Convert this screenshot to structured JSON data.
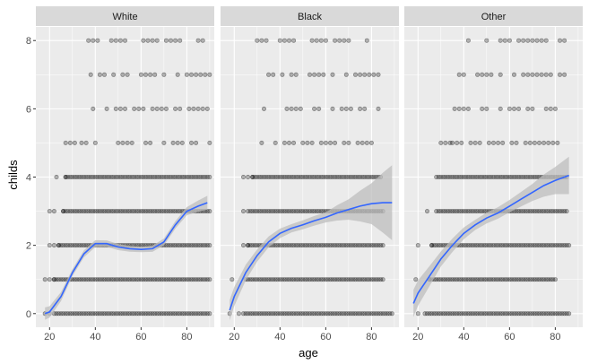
{
  "chart_data": {
    "type": "scatter",
    "title": "",
    "xlabel": "age",
    "ylabel": "childs",
    "xlim": [
      14,
      92
    ],
    "ylim": [
      -0.4,
      8.4
    ],
    "x_ticks": [
      "20",
      "40",
      "60",
      "80"
    ],
    "y_ticks": [
      "0",
      "2",
      "4",
      "6",
      "8"
    ],
    "x_tick_values": [
      20,
      40,
      60,
      80
    ],
    "y_tick_values": [
      0,
      2,
      4,
      6,
      8
    ],
    "smoother": "loess with 95% confidence band",
    "colors": {
      "panel": "#ebebeb",
      "strip": "#d9d9d9",
      "grid": "#ffffff",
      "point": "#000000",
      "line": "#3366ff",
      "band": "#bebebe"
    },
    "panels": [
      {
        "name": "White",
        "points": [
          [
            0,
            [
              [
                18,
                22
              ],
              [
                22,
                90
              ]
            ]
          ],
          [
            1,
            [
              [
                18,
                22
              ],
              [
                22,
                90
              ]
            ]
          ],
          [
            2,
            [
              [
                20,
                24
              ],
              [
                24,
                90
              ]
            ]
          ],
          [
            3,
            [
              [
                20,
                26
              ],
              [
                26,
                90
              ]
            ]
          ],
          [
            4,
            [
              [
                21,
                27
              ],
              [
                27,
                90
              ]
            ]
          ],
          [
            5,
            [
              [
                27,
                32
              ],
              [
                32,
                90
              ]
            ]
          ],
          [
            6,
            [
              [
                37,
                90
              ]
            ]
          ],
          [
            7,
            [
              [
                36,
                90
              ]
            ]
          ],
          [
            8,
            [
              [
                35,
                90
              ]
            ]
          ]
        ],
        "trend": [
          [
            18,
            0.0
          ],
          [
            20,
            0.05
          ],
          [
            25,
            0.5
          ],
          [
            30,
            1.2
          ],
          [
            35,
            1.75
          ],
          [
            40,
            2.05
          ],
          [
            45,
            2.05
          ],
          [
            50,
            1.95
          ],
          [
            55,
            1.9
          ],
          [
            60,
            1.88
          ],
          [
            65,
            1.9
          ],
          [
            70,
            2.1
          ],
          [
            75,
            2.6
          ],
          [
            80,
            3.0
          ],
          [
            85,
            3.15
          ],
          [
            89,
            3.25
          ]
        ],
        "band": [
          [
            18,
            0.18
          ],
          [
            30,
            0.1
          ],
          [
            40,
            0.1
          ],
          [
            60,
            0.08
          ],
          [
            70,
            0.1
          ],
          [
            80,
            0.12
          ],
          [
            89,
            0.2
          ]
        ]
      },
      {
        "name": "Black",
        "points": [
          [
            0,
            [
              [
                18,
                24
              ],
              [
                24,
                89
              ]
            ]
          ],
          [
            1,
            [
              [
                19,
                25
              ],
              [
                25,
                85
              ]
            ]
          ],
          [
            2,
            [
              [
                22,
                26
              ],
              [
                26,
                85
              ]
            ]
          ],
          [
            3,
            [
              [
                24,
                27
              ],
              [
                27,
                85
              ]
            ]
          ],
          [
            4,
            [
              [
                24,
                28
              ],
              [
                28,
                84
              ]
            ]
          ],
          [
            5,
            [
              [
                29,
                32
              ],
              [
                32,
                80
              ]
            ]
          ],
          [
            6,
            [
              [
                33,
                83
              ]
            ]
          ],
          [
            7,
            [
              [
                33,
                83
              ]
            ]
          ],
          [
            8,
            [
              [
                30,
                79
              ]
            ]
          ]
        ],
        "trend": [
          [
            18,
            0.1
          ],
          [
            20,
            0.5
          ],
          [
            25,
            1.2
          ],
          [
            30,
            1.7
          ],
          [
            35,
            2.1
          ],
          [
            40,
            2.35
          ],
          [
            45,
            2.5
          ],
          [
            50,
            2.6
          ],
          [
            55,
            2.72
          ],
          [
            60,
            2.82
          ],
          [
            65,
            2.95
          ],
          [
            70,
            3.05
          ],
          [
            75,
            3.15
          ],
          [
            80,
            3.22
          ],
          [
            85,
            3.25
          ],
          [
            89,
            3.25
          ]
        ],
        "band": [
          [
            18,
            0.3
          ],
          [
            30,
            0.18
          ],
          [
            45,
            0.12
          ],
          [
            60,
            0.15
          ],
          [
            70,
            0.3
          ],
          [
            80,
            0.6
          ],
          [
            89,
            1.1
          ]
        ]
      },
      {
        "name": "Other",
        "points": [
          [
            0,
            [
              [
                18,
                23
              ],
              [
                23,
                86
              ]
            ]
          ],
          [
            1,
            [
              [
                19,
                25
              ],
              [
                25,
                80
              ]
            ]
          ],
          [
            2,
            [
              [
                20,
                26
              ],
              [
                26,
                86
              ]
            ]
          ],
          [
            3,
            [
              [
                22,
                28
              ],
              [
                28,
                85
              ]
            ]
          ],
          [
            4,
            [
              [
                24,
                28
              ],
              [
                28,
                85
              ]
            ]
          ],
          [
            5,
            [
              [
                30,
                35
              ],
              [
                35,
                84
              ]
            ]
          ],
          [
            6,
            [
              [
                32,
                80
              ]
            ]
          ],
          [
            7,
            [
              [
                38,
                85
              ]
            ]
          ],
          [
            8,
            [
              [
                42,
                85
              ]
            ]
          ]
        ],
        "trend": [
          [
            18,
            0.3
          ],
          [
            20,
            0.6
          ],
          [
            25,
            1.1
          ],
          [
            30,
            1.6
          ],
          [
            35,
            2.0
          ],
          [
            40,
            2.35
          ],
          [
            45,
            2.6
          ],
          [
            50,
            2.8
          ],
          [
            55,
            2.95
          ],
          [
            60,
            3.15
          ],
          [
            65,
            3.35
          ],
          [
            70,
            3.55
          ],
          [
            75,
            3.75
          ],
          [
            80,
            3.9
          ],
          [
            86,
            4.05
          ]
        ],
        "band": [
          [
            18,
            0.4
          ],
          [
            30,
            0.22
          ],
          [
            45,
            0.15
          ],
          [
            60,
            0.18
          ],
          [
            70,
            0.25
          ],
          [
            80,
            0.4
          ],
          [
            86,
            0.55
          ]
        ]
      }
    ]
  }
}
